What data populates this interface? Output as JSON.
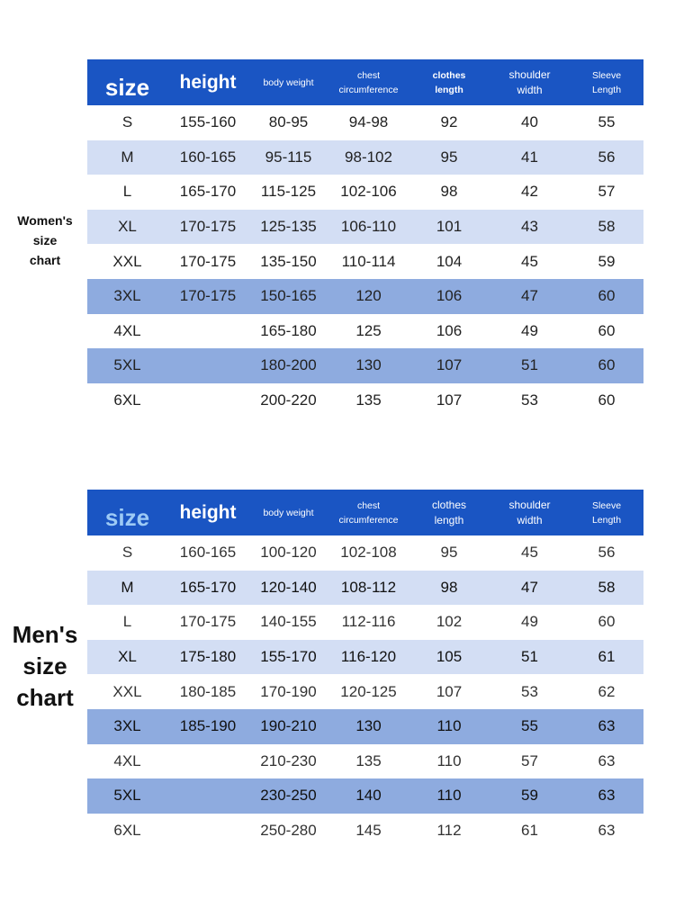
{
  "women": {
    "label": [
      "Women's",
      "size",
      "chart"
    ],
    "headers": {
      "size": "size",
      "height": "height",
      "body_weight": "body weight",
      "chest": [
        "chest",
        "circumference"
      ],
      "clothes": [
        "clothes",
        "length"
      ],
      "shoulder": [
        "shoulder",
        "width"
      ],
      "sleeve": [
        "Sleeve",
        "Length"
      ]
    },
    "rows": [
      {
        "style": "plain",
        "cells": [
          "S",
          "155-160",
          "80-95",
          "94-98",
          "92",
          "40",
          "55"
        ]
      },
      {
        "style": "light",
        "cells": [
          "M",
          "160-165",
          "95-115",
          "98-102",
          "95",
          "41",
          "56"
        ]
      },
      {
        "style": "plain",
        "cells": [
          "L",
          "165-170",
          "115-125",
          "102-106",
          "98",
          "42",
          "57"
        ]
      },
      {
        "style": "light",
        "cells": [
          "XL",
          "170-175",
          "125-135",
          "106-110",
          "101",
          "43",
          "58"
        ]
      },
      {
        "style": "plain",
        "cells": [
          "XXL",
          "170-175",
          "135-150",
          "110-114",
          "104",
          "45",
          "59"
        ]
      },
      {
        "style": "dark",
        "cells": [
          "3XL",
          "170-175",
          "150-165",
          "120",
          "106",
          "47",
          "60"
        ]
      },
      {
        "style": "plain",
        "cells": [
          "4XL",
          "",
          "165-180",
          "125",
          "106",
          "49",
          "60"
        ]
      },
      {
        "style": "dark",
        "cells": [
          "5XL",
          "",
          "180-200",
          "130",
          "107",
          "51",
          "60"
        ]
      },
      {
        "style": "plain",
        "cells": [
          "6XL",
          "",
          "200-220",
          "135",
          "107",
          "53",
          "60"
        ]
      }
    ]
  },
  "men": {
    "label": [
      "Men's",
      "size",
      "chart"
    ],
    "headers": {
      "size": "size",
      "height": "height",
      "body_weight": "body weight",
      "chest": [
        "chest",
        "circumference"
      ],
      "clothes": [
        "clothes",
        "length"
      ],
      "shoulder": [
        "shoulder",
        "width"
      ],
      "sleeve": [
        "Sleeve",
        "Length"
      ]
    },
    "rows": [
      {
        "style": "plain",
        "cells": [
          "S",
          "160-165",
          "100-120",
          "102-108",
          "95",
          "45",
          "56"
        ]
      },
      {
        "style": "light",
        "cells": [
          "M",
          "165-170",
          "120-140",
          "108-112",
          "98",
          "47",
          "58"
        ]
      },
      {
        "style": "plain",
        "cells": [
          "L",
          "170-175",
          "140-155",
          "112-116",
          "102",
          "49",
          "60"
        ]
      },
      {
        "style": "light",
        "cells": [
          "XL",
          "175-180",
          "155-170",
          "116-120",
          "105",
          "51",
          "61"
        ]
      },
      {
        "style": "plain",
        "cells": [
          "XXL",
          "180-185",
          "170-190",
          "120-125",
          "107",
          "53",
          "62"
        ]
      },
      {
        "style": "dark",
        "cells": [
          "3XL",
          "185-190",
          "190-210",
          "130",
          "110",
          "55",
          "63"
        ]
      },
      {
        "style": "plain",
        "cells": [
          "4XL",
          "",
          "210-230",
          "135",
          "110",
          "57",
          "63"
        ]
      },
      {
        "style": "dark",
        "cells": [
          "5XL",
          "",
          "230-250",
          "140",
          "110",
          "59",
          "63"
        ]
      },
      {
        "style": "plain",
        "cells": [
          "6XL",
          "",
          "250-280",
          "145",
          "112",
          "61",
          "63"
        ]
      }
    ]
  }
}
